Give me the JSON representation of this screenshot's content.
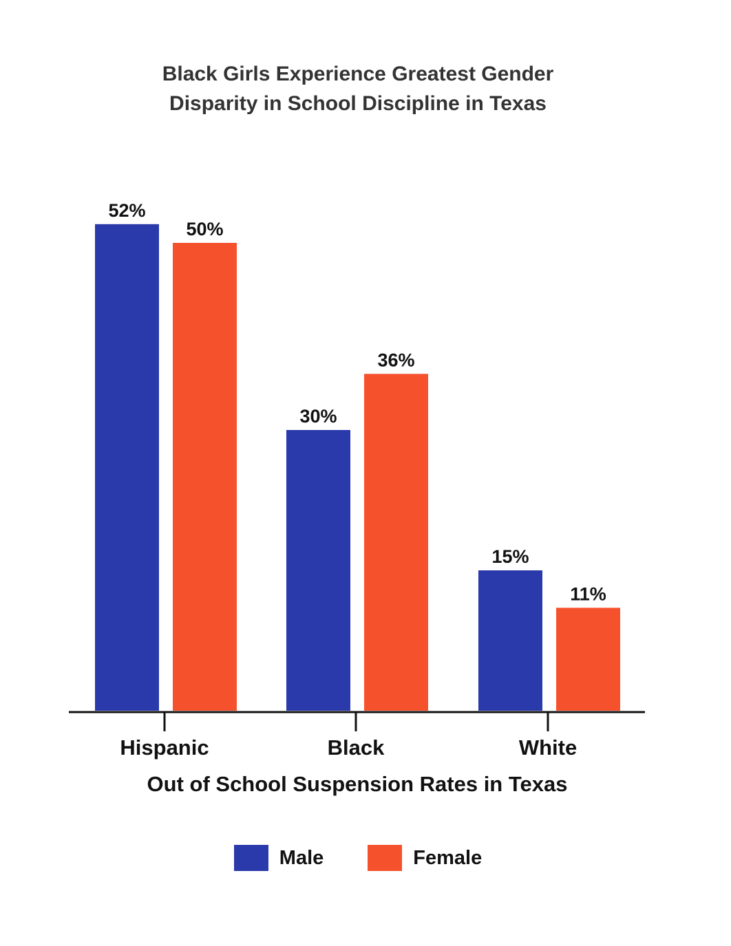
{
  "chart_data": {
    "type": "bar",
    "title_lines": [
      "Black Girls Experience Greatest Gender",
      "Disparity in School Discipline in Texas"
    ],
    "xlabel": "Out of School Suspension Rates in Texas",
    "ylabel": "",
    "categories": [
      "Hispanic",
      "Black",
      "White"
    ],
    "series": [
      {
        "name": "Male",
        "color": "#2a3aab",
        "values": [
          52,
          30,
          15
        ],
        "labels": [
          "52%",
          "30%",
          "15%"
        ]
      },
      {
        "name": "Female",
        "color": "#f5512d",
        "values": [
          50,
          36,
          11
        ],
        "labels": [
          "50%",
          "36%",
          "11%"
        ]
      }
    ],
    "ylim": [
      0,
      60
    ],
    "grid": false,
    "legend_position": "bottom"
  }
}
